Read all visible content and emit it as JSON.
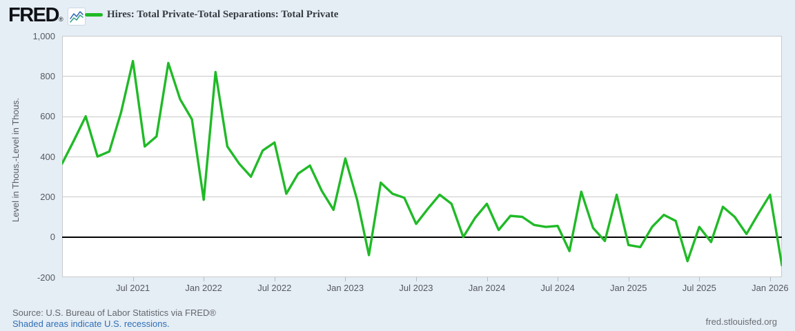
{
  "header": {
    "logo_text": "FRED",
    "registered_mark": "®",
    "legend_label": "Hires: Total Private-Total Separations: Total Private"
  },
  "chart_data": {
    "type": "line",
    "title": "Hires: Total Private-Total Separations: Total Private",
    "ylabel": "Level in Thous.-Level in Thous.",
    "xlabel": "",
    "ylim": [
      -200,
      1000
    ],
    "yticks": [
      1000,
      800,
      600,
      400,
      200,
      0,
      -200
    ],
    "ytick_labels": [
      "1,000",
      "800",
      "600",
      "400",
      "200",
      "0",
      "-200"
    ],
    "grid": true,
    "zero_line": true,
    "legend_position": "top-left",
    "frequency": "monthly",
    "x_start_month": "Jan 2021",
    "x_end_month": "Feb 2026",
    "xtick_labels": [
      "Jul 2021",
      "Jan 2022",
      "Jul 2022",
      "Jan 2023",
      "Jul 2023",
      "Jan 2024",
      "Jul 2024",
      "Jan 2025",
      "Jul 2025",
      "Jan 2026"
    ],
    "xtick_month_indices": [
      6,
      12,
      18,
      24,
      30,
      36,
      42,
      48,
      54,
      60
    ],
    "series": [
      {
        "name": "Hires: Total Private-Total Separations: Total Private",
        "color": "#20ba27",
        "values": [
          365,
          480,
          600,
          400,
          425,
          620,
          875,
          450,
          500,
          865,
          685,
          585,
          185,
          820,
          450,
          365,
          300,
          430,
          470,
          215,
          315,
          355,
          230,
          135,
          390,
          185,
          -90,
          270,
          215,
          195,
          65,
          140,
          210,
          165,
          0,
          95,
          165,
          35,
          105,
          100,
          60,
          50,
          55,
          -70,
          225,
          45,
          -20,
          210,
          -40,
          -50,
          50,
          110,
          80,
          -120,
          50,
          -25,
          150,
          100,
          15,
          115,
          210,
          -140
        ]
      }
    ]
  },
  "footer": {
    "source_line": "Source: U.S. Bureau of Labor Statistics via FRED®",
    "recessions_note": "Shaded areas indicate U.S. recessions.",
    "site_link": "fred.stlouisfed.org"
  },
  "colors": {
    "background": "#e5edf5",
    "plot_background": "#ffffff",
    "gridline": "#c9c9c9",
    "zero_line": "#000000",
    "line_green": "#20ba27",
    "link_blue": "#2e6eb5",
    "logo_icon_blue": "#3b6fb6",
    "logo_icon_teal": "#35a285"
  }
}
